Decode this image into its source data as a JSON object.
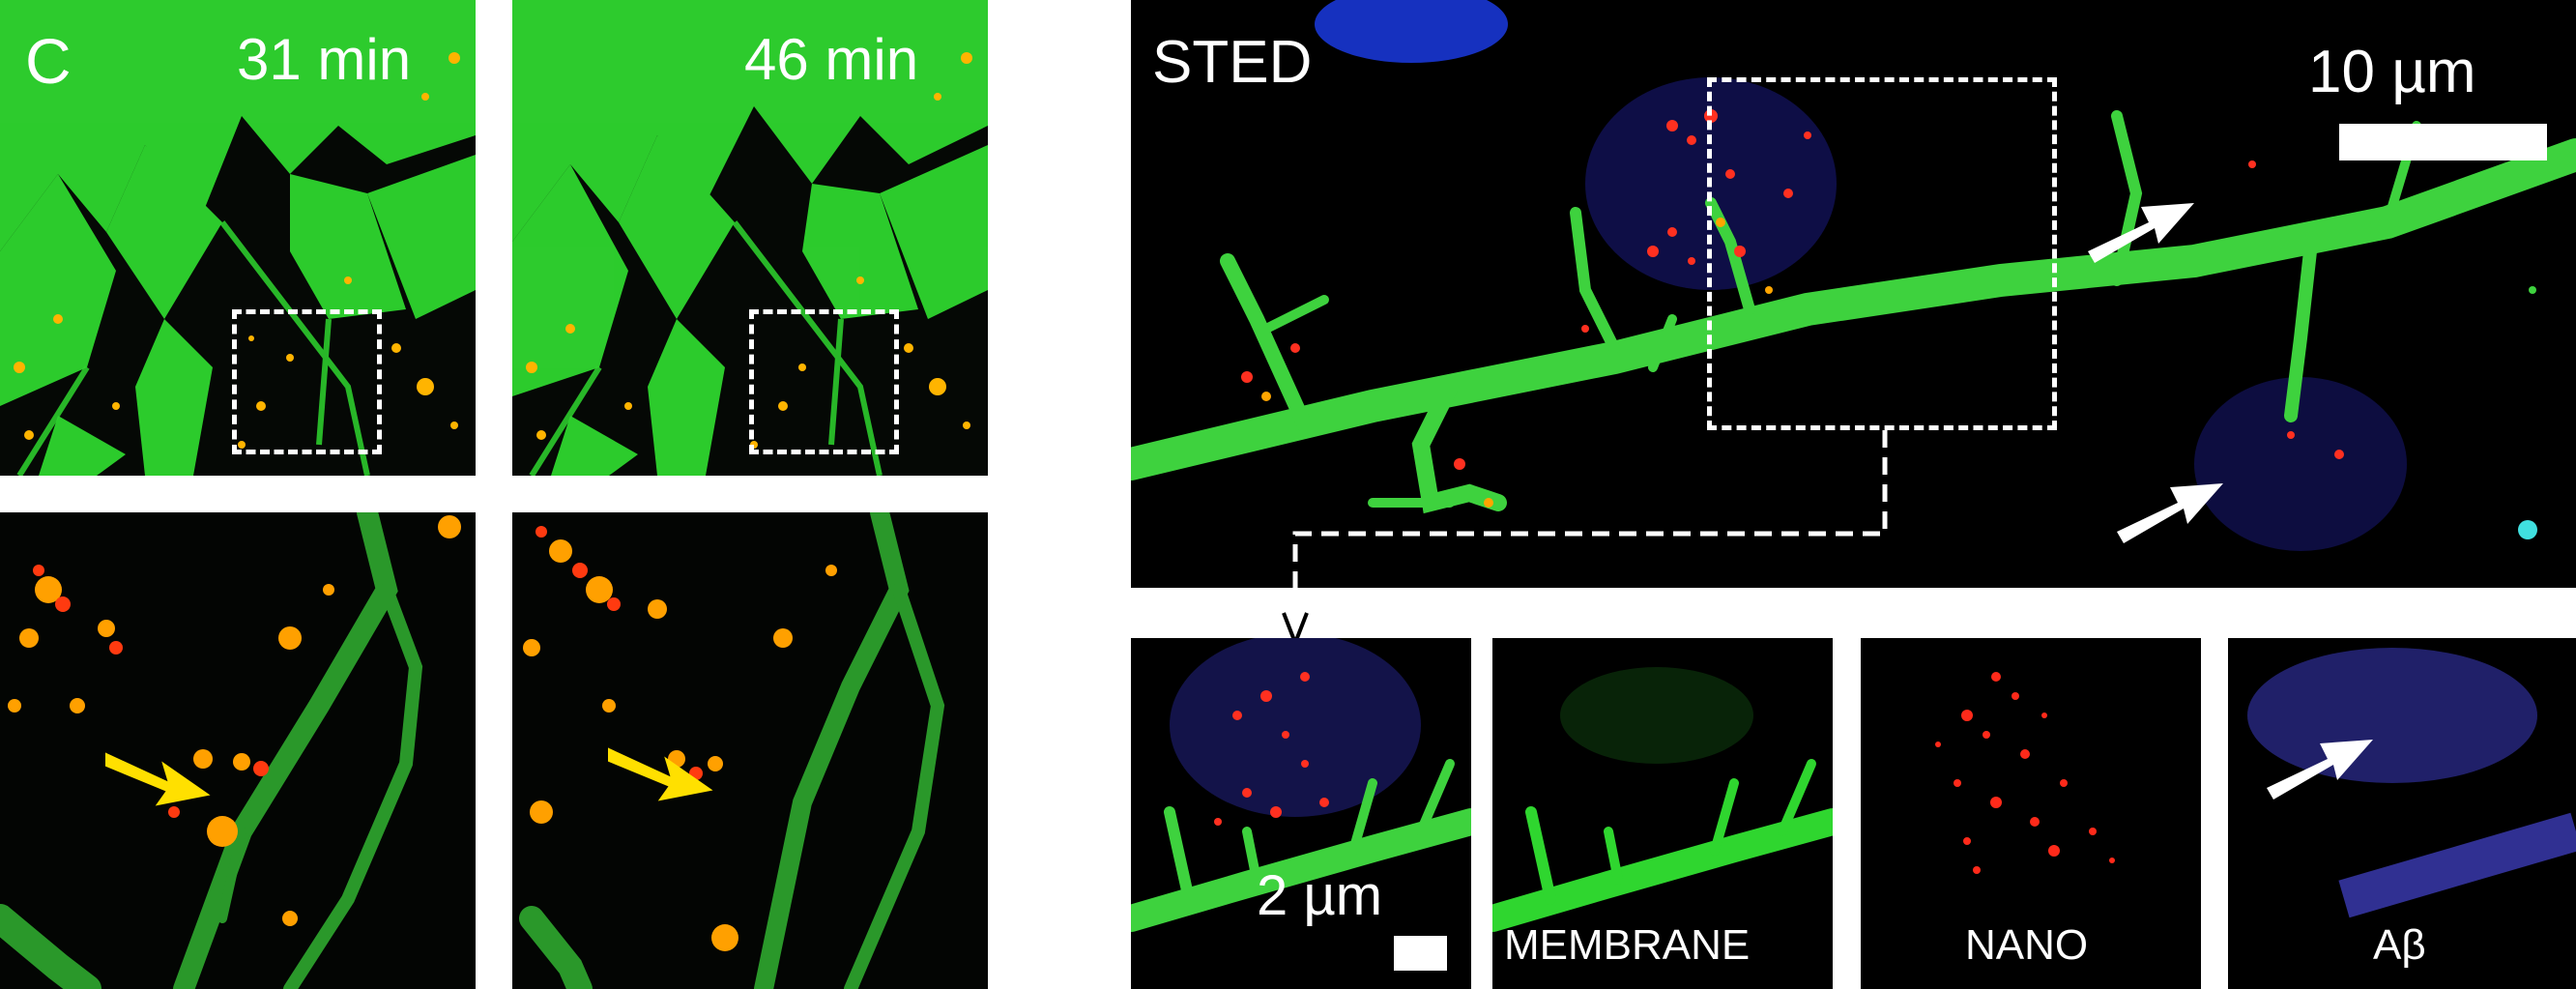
{
  "figure": {
    "panel_letter": "C",
    "timepoints": [
      "31 min",
      "46 min"
    ],
    "sted_label": "STED",
    "scale_large": "10 µm",
    "scale_small": "2 µm",
    "channels": [
      "MEMBRANE",
      "NANO",
      "Aβ"
    ]
  },
  "colors": {
    "membrane": "#2fd62f",
    "nano": "#ff2a1a",
    "abeta": "#4a4ae0",
    "cluster": "#ffb400",
    "arrow_yellow": "#ffe000",
    "arrow_white": "#ffffff"
  }
}
